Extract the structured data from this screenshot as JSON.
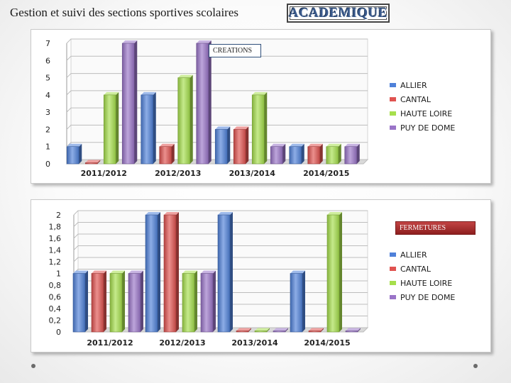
{
  "header": {
    "title": "Gestion et suivi des sections sportives scolaires",
    "brand": "ACADEMIQUE"
  },
  "colors": {
    "ALLIER": "#4f81d9",
    "CANTAL": "#e05350",
    "HAUTE LOIRE": "#a6df4c",
    "PUY DE DOME": "#9a74c8"
  },
  "chart_data": [
    {
      "type": "bar",
      "tag": "CREATIONS",
      "categories": [
        "2011/2012",
        "2012/2013",
        "2013/2014",
        "2014/2015"
      ],
      "series": [
        {
          "name": "ALLIER",
          "values": [
            1,
            4,
            2,
            1
          ]
        },
        {
          "name": "CANTAL",
          "values": [
            0,
            1,
            2,
            1
          ]
        },
        {
          "name": "HAUTE LOIRE",
          "values": [
            4,
            5,
            4,
            1
          ]
        },
        {
          "name": "PUY DE DOME",
          "values": [
            7,
            7,
            1,
            1
          ]
        }
      ],
      "ylim": [
        0,
        7
      ],
      "yticks": [
        "0",
        "1",
        "2",
        "3",
        "4",
        "5",
        "6",
        "7"
      ],
      "grid": true,
      "legend": "right"
    },
    {
      "type": "bar",
      "tag": "FERMETURES",
      "categories": [
        "2011/2012",
        "2012/2013",
        "2013/2014",
        "2014/2015"
      ],
      "series": [
        {
          "name": "ALLIER",
          "values": [
            1,
            2,
            2,
            1
          ]
        },
        {
          "name": "CANTAL",
          "values": [
            1,
            2,
            0,
            0
          ]
        },
        {
          "name": "HAUTE LOIRE",
          "values": [
            1,
            1,
            0,
            2
          ]
        },
        {
          "name": "PUY DE DOME",
          "values": [
            1,
            1,
            0,
            0
          ]
        }
      ],
      "ylim": [
        0,
        2
      ],
      "yticks": [
        "0",
        "0,2",
        "0,4",
        "0,6",
        "0,8",
        "1",
        "1,2",
        "1,4",
        "1,6",
        "1,8",
        "2"
      ],
      "grid": true,
      "legend": "right"
    }
  ]
}
